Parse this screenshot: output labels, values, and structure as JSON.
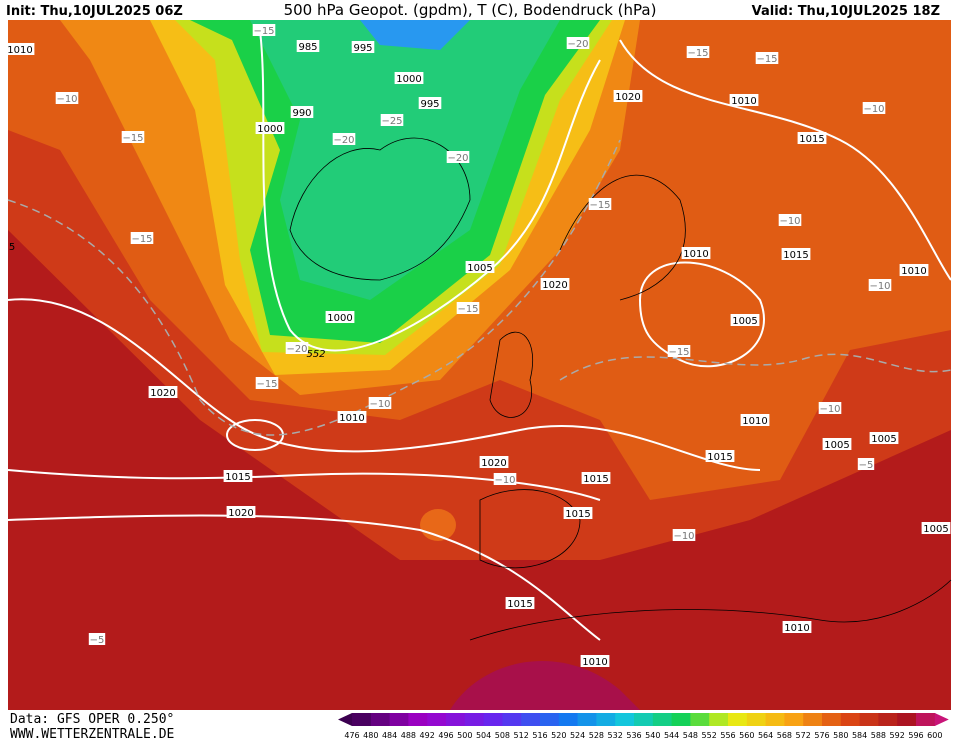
{
  "header": {
    "init": "Init: Thu,10JUL2025 06Z",
    "title": "500 hPa Geopot. (gpdm), T (C), Bodendruck (hPa)",
    "valid": "Valid: Thu,10JUL2025 18Z"
  },
  "footer": {
    "data": "Data: GFS OPER 0.250°",
    "url": "WWW.WETTERZENTRALE.DE"
  },
  "colorbar": {
    "labels": [
      "476",
      "480",
      "484",
      "488",
      "492",
      "496",
      "500",
      "504",
      "508",
      "512",
      "516",
      "520",
      "524",
      "528",
      "532",
      "536",
      "540",
      "544",
      "548",
      "552",
      "556",
      "560",
      "564",
      "568",
      "572",
      "576",
      "580",
      "584",
      "588",
      "592",
      "596",
      "600"
    ]
  },
  "isobar_labels": [
    "1010",
    "985",
    "995",
    "1000",
    "995",
    "990",
    "1000",
    "1020",
    "1010",
    "1015",
    "1010",
    "1015",
    "1010",
    "1005",
    "1020",
    "1000",
    "1005",
    "1020",
    "1010",
    "1010",
    "1005",
    "1005",
    "1015",
    "1020",
    "1015",
    "1015",
    "1020",
    "1015",
    "1005",
    "1015",
    "1010",
    "1010"
  ],
  "isotherm_labels": [
    "−15",
    "−20",
    "−15",
    "−15",
    "−10",
    "−10",
    "−15",
    "−20",
    "−25",
    "−20",
    "−15",
    "−10",
    "−15",
    "−10",
    "−15",
    "−15",
    "−20",
    "−15",
    "−10",
    "−10",
    "−10",
    "−10",
    "−5",
    "−5"
  ],
  "geopotential_label": "552",
  "edge_label": "5"
}
